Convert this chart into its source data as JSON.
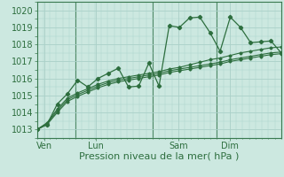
{
  "bg_color": "#cce8e0",
  "grid_color": "#aad0c8",
  "line_color": "#2d6e3e",
  "marker_color": "#2d6e3e",
  "xlabel": "Pression niveau de la mer( hPa )",
  "xlabel_fontsize": 8,
  "tick_fontsize": 7,
  "ylim": [
    1012.5,
    1020.5
  ],
  "yticks": [
    1013,
    1014,
    1015,
    1016,
    1017,
    1018,
    1019,
    1020
  ],
  "day_labels": [
    "Ven",
    "Lun",
    "Sam",
    "Dim"
  ],
  "day_positions": [
    0.3,
    2.3,
    5.5,
    7.5
  ],
  "vline_positions": [
    1.5,
    4.5,
    7.0
  ],
  "xlim": [
    0,
    9.5
  ],
  "series_main": [
    1013.0,
    1013.3,
    1014.5,
    1015.1,
    1015.9,
    1015.5,
    1016.0,
    1016.3,
    1016.6,
    1015.5,
    1015.55,
    1016.9,
    1015.55,
    1019.1,
    1019.0,
    1019.55,
    1019.6,
    1018.7,
    1017.6,
    1019.6,
    1019.0,
    1018.1,
    1018.15,
    1018.2,
    1017.5
  ],
  "series_smooth1": [
    1013.0,
    1013.4,
    1014.2,
    1014.85,
    1015.15,
    1015.4,
    1015.65,
    1015.85,
    1016.0,
    1016.1,
    1016.2,
    1016.3,
    1016.4,
    1016.55,
    1016.65,
    1016.8,
    1016.95,
    1017.1,
    1017.2,
    1017.35,
    1017.5,
    1017.6,
    1017.7,
    1017.8,
    1017.85
  ],
  "series_smooth2": [
    1013.0,
    1013.35,
    1014.1,
    1014.75,
    1015.05,
    1015.3,
    1015.55,
    1015.75,
    1015.9,
    1016.0,
    1016.1,
    1016.2,
    1016.3,
    1016.45,
    1016.55,
    1016.65,
    1016.75,
    1016.85,
    1016.95,
    1017.1,
    1017.2,
    1017.3,
    1017.4,
    1017.5,
    1017.55
  ],
  "series_smooth3": [
    1013.0,
    1013.3,
    1014.0,
    1014.65,
    1014.95,
    1015.2,
    1015.45,
    1015.65,
    1015.8,
    1015.9,
    1016.0,
    1016.1,
    1016.2,
    1016.35,
    1016.45,
    1016.55,
    1016.65,
    1016.75,
    1016.85,
    1017.0,
    1017.1,
    1017.2,
    1017.3,
    1017.4,
    1017.45
  ],
  "n_points": 25
}
